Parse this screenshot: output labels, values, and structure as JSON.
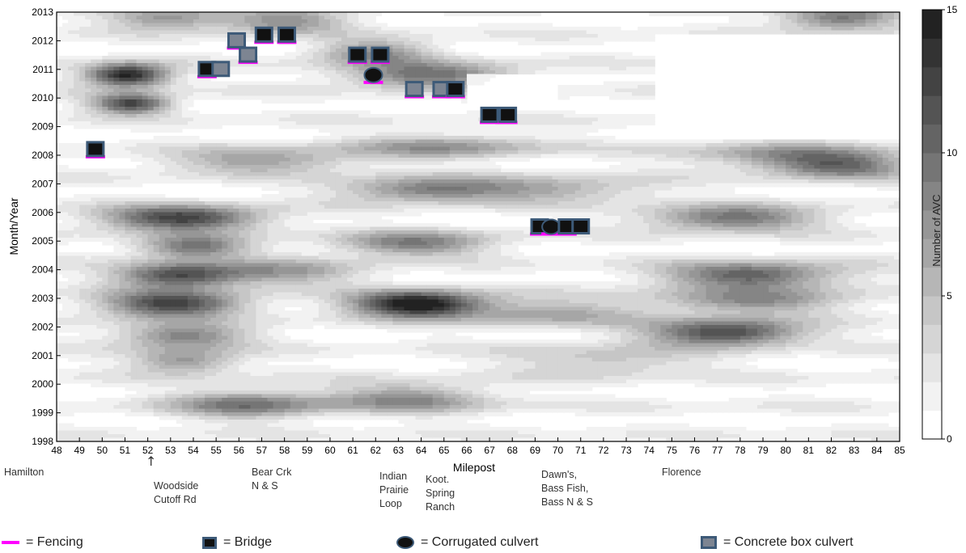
{
  "chart_data": {
    "type": "heatmap",
    "xlabel": "Milepost",
    "ylabel": "Month/Year",
    "colorbar_label": "Number of AVC",
    "xlim": [
      48,
      85
    ],
    "ylim": [
      1998,
      2013
    ],
    "xticks": [
      48,
      49,
      50,
      51,
      52,
      53,
      54,
      55,
      56,
      57,
      58,
      59,
      60,
      61,
      62,
      63,
      64,
      65,
      66,
      67,
      68,
      69,
      70,
      71,
      72,
      73,
      74,
      75,
      76,
      77,
      78,
      79,
      80,
      81,
      82,
      83,
      84,
      85
    ],
    "yticks": [
      1998,
      1999,
      2000,
      2001,
      2002,
      2003,
      2004,
      2005,
      2006,
      2007,
      2008,
      2009,
      2010,
      2011,
      2012,
      2013
    ],
    "colorbar_ticks": [
      0,
      5,
      10,
      15
    ],
    "colorbar_range": [
      0,
      15
    ],
    "colorscale": [
      "#ffffff",
      "#f2f2f2",
      "#e4e4e4",
      "#d5d5d5",
      "#c6c6c6",
      "#b6b6b6",
      "#a6a6a6",
      "#969696",
      "#858585",
      "#757575",
      "#646464",
      "#545454",
      "#434343",
      "#333333",
      "#222222"
    ],
    "hotspots": [
      {
        "x": 51.1,
        "y": 2010.8,
        "sx": 1.3,
        "sy": 0.28,
        "v": 14.5
      },
      {
        "x": 51.3,
        "y": 2009.8,
        "sx": 1.2,
        "sy": 0.25,
        "v": 12
      },
      {
        "x": 53.5,
        "y": 2005.8,
        "sx": 2.5,
        "sy": 0.3,
        "v": 12
      },
      {
        "x": 53.3,
        "y": 2003.8,
        "sx": 1.9,
        "sy": 0.3,
        "v": 11
      },
      {
        "x": 53.1,
        "y": 2002.8,
        "sx": 2.2,
        "sy": 0.32,
        "v": 12
      },
      {
        "x": 53.5,
        "y": 2001.7,
        "sx": 2.0,
        "sy": 0.3,
        "v": 8
      },
      {
        "x": 53.6,
        "y": 2000.8,
        "sx": 1.6,
        "sy": 0.3,
        "v": 7
      },
      {
        "x": 54.0,
        "y": 2004.8,
        "sx": 1.7,
        "sy": 0.28,
        "v": 9
      },
      {
        "x": 63.8,
        "y": 2002.8,
        "sx": 2.0,
        "sy": 0.32,
        "v": 15
      },
      {
        "x": 63.6,
        "y": 2004.9,
        "sx": 2.4,
        "sy": 0.3,
        "v": 8
      },
      {
        "x": 64.2,
        "y": 2006.8,
        "sx": 2.6,
        "sy": 0.3,
        "v": 8
      },
      {
        "x": 64.3,
        "y": 2010.8,
        "sx": 2.6,
        "sy": 0.3,
        "v": 9
      },
      {
        "x": 65.0,
        "y": 2008.3,
        "sx": 3.0,
        "sy": 0.3,
        "v": 6
      },
      {
        "x": 56.4,
        "y": 1999.3,
        "sx": 2.4,
        "sy": 0.35,
        "v": 8
      },
      {
        "x": 63.5,
        "y": 1999.5,
        "sx": 2.5,
        "sy": 0.35,
        "v": 7
      },
      {
        "x": 77.3,
        "y": 2001.8,
        "sx": 2.4,
        "sy": 0.32,
        "v": 12
      },
      {
        "x": 78.5,
        "y": 2003.8,
        "sx": 2.8,
        "sy": 0.32,
        "v": 10
      },
      {
        "x": 77.6,
        "y": 2005.8,
        "sx": 2.6,
        "sy": 0.3,
        "v": 9
      },
      {
        "x": 82.4,
        "y": 2007.6,
        "sx": 2.2,
        "sy": 0.3,
        "v": 8
      },
      {
        "x": 78.5,
        "y": 2002.9,
        "sx": 3.0,
        "sy": 0.3,
        "v": 7
      },
      {
        "x": 82.4,
        "y": 2012.8,
        "sx": 1.8,
        "sy": 0.3,
        "v": 9
      },
      {
        "x": 52.8,
        "y": 2012.8,
        "sx": 1.8,
        "sy": 0.28,
        "v": 7
      },
      {
        "x": 58.0,
        "y": 2012.7,
        "sx": 2.0,
        "sy": 0.3,
        "v": 7
      },
      {
        "x": 62.0,
        "y": 2011.6,
        "sx": 1.8,
        "sy": 0.3,
        "v": 7
      },
      {
        "x": 57.0,
        "y": 2007.8,
        "sx": 3.0,
        "sy": 0.3,
        "v": 6
      },
      {
        "x": 70.0,
        "y": 2006.8,
        "sx": 3.0,
        "sy": 0.3,
        "v": 5
      },
      {
        "x": 69.5,
        "y": 2002.5,
        "sx": 3.0,
        "sy": 0.35,
        "v": 5
      },
      {
        "x": 72.0,
        "y": 2000.8,
        "sx": 3.0,
        "sy": 0.35,
        "v": 4
      },
      {
        "x": 80.0,
        "y": 2008.0,
        "sx": 3.2,
        "sy": 0.3,
        "v": 6
      },
      {
        "x": 58.0,
        "y": 2003.9,
        "sx": 2.5,
        "sy": 0.3,
        "v": 6
      }
    ],
    "markers": [
      {
        "type": "bridge",
        "x": 49.7,
        "y": 2008.2,
        "fencing": true
      },
      {
        "type": "bridge",
        "x": 54.6,
        "y": 2011.0,
        "fencing": true
      },
      {
        "type": "concrete_box",
        "x": 55.2,
        "y": 2011.0,
        "fencing": false
      },
      {
        "type": "concrete_box",
        "x": 55.9,
        "y": 2012.0,
        "fencing": true
      },
      {
        "type": "concrete_box",
        "x": 56.4,
        "y": 2011.5,
        "fencing": true
      },
      {
        "type": "bridge",
        "x": 57.1,
        "y": 2012.2,
        "fencing": true
      },
      {
        "type": "bridge",
        "x": 58.1,
        "y": 2012.2,
        "fencing": true
      },
      {
        "type": "bridge",
        "x": 61.2,
        "y": 2011.5,
        "fencing": true
      },
      {
        "type": "bridge",
        "x": 62.2,
        "y": 2011.5,
        "fencing": true
      },
      {
        "type": "corrugated",
        "x": 61.9,
        "y": 2010.8,
        "fencing": true
      },
      {
        "type": "concrete_box",
        "x": 63.7,
        "y": 2010.3,
        "fencing": true
      },
      {
        "type": "concrete_box",
        "x": 64.9,
        "y": 2010.3,
        "fencing": true
      },
      {
        "type": "bridge",
        "x": 65.5,
        "y": 2010.3,
        "fencing": true
      },
      {
        "type": "bridge",
        "x": 67.0,
        "y": 2009.4,
        "fencing": true
      },
      {
        "type": "bridge",
        "x": 67.8,
        "y": 2009.4,
        "fencing": true
      },
      {
        "type": "bridge",
        "x": 69.2,
        "y": 2005.5,
        "fencing": true
      },
      {
        "type": "corrugated",
        "x": 69.7,
        "y": 2005.5,
        "fencing": true
      },
      {
        "type": "bridge",
        "x": 70.4,
        "y": 2005.5,
        "fencing": true
      },
      {
        "type": "bridge",
        "x": 71.0,
        "y": 2005.5,
        "fencing": false
      }
    ]
  },
  "locations": [
    {
      "id": "hamilton",
      "text": [
        "Hamilton"
      ]
    },
    {
      "id": "woodside",
      "text": [
        "Woodside",
        "Cutoff Rd"
      ],
      "arrow": "↑"
    },
    {
      "id": "bearcrk",
      "text": [
        "Bear Crk",
        "N & S"
      ]
    },
    {
      "id": "indian",
      "text": [
        "Indian",
        "Prairie",
        "Loop"
      ]
    },
    {
      "id": "koot",
      "text": [
        "Koot.",
        "Spring",
        "Ranch"
      ]
    },
    {
      "id": "dawns",
      "text": [
        "Dawn's,",
        "Bass Fish,",
        "Bass N & S"
      ]
    },
    {
      "id": "florence",
      "text": [
        "Florence"
      ]
    }
  ],
  "legend": {
    "fencing": "= Fencing",
    "bridge": "= Bridge",
    "corrugated": "= Corrugated culvert",
    "concrete_box": "= Concrete box culvert"
  },
  "colors": {
    "fencing": "#ff00ff",
    "marker_border": "#3d5a78",
    "bridge_fill": "#111111",
    "box_fill": "#7d8592"
  }
}
